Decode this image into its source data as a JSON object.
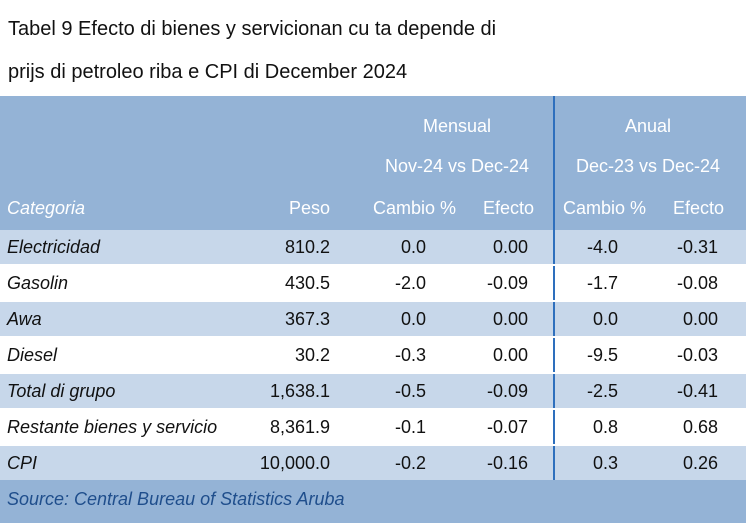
{
  "title": {
    "line1": "Tabel 9 Efecto di bienes y servicionan cu ta depende di",
    "line2": "prijs di petroleo riba e CPI di December 2024"
  },
  "header": {
    "mensual": "Mensual",
    "mensual_period": "Nov-24 vs Dec-24",
    "anual": "Anual",
    "anual_period": "Dec-23 vs Dec-24",
    "categoria": "Categoria",
    "peso": "Peso",
    "cambio_m": "Cambio %",
    "efecto_m": "Efecto",
    "cambio_a": "Cambio %",
    "efecto_a": "Efecto"
  },
  "rows": [
    {
      "categoria": "Electricidad",
      "peso": "810.2",
      "m_cambio": "0.0",
      "m_efecto": "0.00",
      "a_cambio": "-4.0",
      "a_efecto": "-0.31"
    },
    {
      "categoria": "Gasolin",
      "peso": "430.5",
      "m_cambio": "-2.0",
      "m_efecto": "-0.09",
      "a_cambio": "-1.7",
      "a_efecto": "-0.08"
    },
    {
      "categoria": "Awa",
      "peso": "367.3",
      "m_cambio": "0.0",
      "m_efecto": "0.00",
      "a_cambio": "0.0",
      "a_efecto": "0.00"
    },
    {
      "categoria": "Diesel",
      "peso": "30.2",
      "m_cambio": "-0.3",
      "m_efecto": "0.00",
      "a_cambio": "-9.5",
      "a_efecto": "-0.03"
    },
    {
      "categoria": "Total di grupo",
      "peso": "1,638.1",
      "m_cambio": "-0.5",
      "m_efecto": "-0.09",
      "a_cambio": "-2.5",
      "a_efecto": "-0.41"
    },
    {
      "categoria": "Restante bienes y servicio",
      "peso": "8,361.9",
      "m_cambio": "-0.1",
      "m_efecto": "-0.07",
      "a_cambio": "0.8",
      "a_efecto": "0.68"
    },
    {
      "categoria": "CPI",
      "peso": "10,000.0",
      "m_cambio": "-0.2",
      "m_efecto": "-0.16",
      "a_cambio": "0.3",
      "a_efecto": "0.26"
    }
  ],
  "source": "Source: Central Bureau of Statistics Aruba",
  "colors": {
    "background": "#94b3d6",
    "row_shade": "#c7d7ea",
    "divider": "#2e6fbd",
    "source_text": "#1f4e8c"
  }
}
